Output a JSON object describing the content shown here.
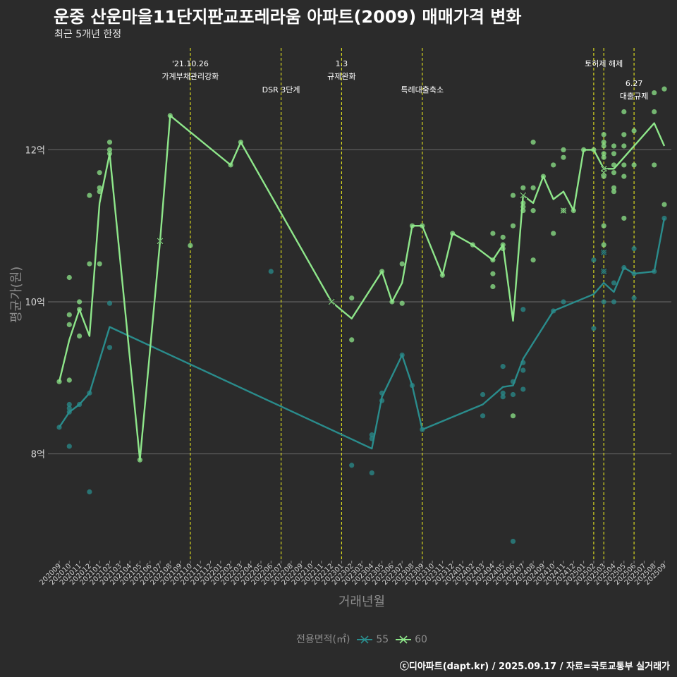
{
  "title": "운중 산운마을11단지판교포레라움 아파트(2009) 매매가격 변화",
  "subtitle": "최근 5개년 한정",
  "footer": "ⓒ디아파트(dapt.kr) / 2025.09.17 / 자료=국토교통부 실거래가",
  "colors": {
    "background": "#2b2b2b",
    "series55": "#2a8c8c",
    "series60": "#8ee68a",
    "event_line": "#d8d81e",
    "grid": "#6b6b6b"
  },
  "chart_data": {
    "type": "line",
    "title": "운중 산운마을11단지판교포레라움 아파트(2009) 매매가격 변화",
    "subtitle": "최근 5개년 한정",
    "xlabel": "거래년월",
    "ylabel": "평균가(원)",
    "ylim": [
      6.6,
      12.9
    ],
    "yticks": [
      {
        "value": 8,
        "label": "8억"
      },
      {
        "value": 10,
        "label": "10억"
      },
      {
        "value": 12,
        "label": "12억"
      }
    ],
    "grid": true,
    "legend_title": "전용면적(㎡)",
    "legend_position": "bottom",
    "categories": [
      "202009",
      "202010",
      "202011",
      "202012",
      "202101",
      "202102",
      "202103",
      "202104",
      "202105",
      "202106",
      "202107",
      "202108",
      "202109",
      "202110",
      "202111",
      "202112",
      "202201",
      "202202",
      "202203",
      "202204",
      "202205",
      "202206",
      "202207",
      "202208",
      "202209",
      "202210",
      "202211",
      "202212",
      "202301",
      "202302",
      "202303",
      "202304",
      "202305",
      "202306",
      "202307",
      "202308",
      "202309",
      "202310",
      "202311",
      "202312",
      "202401",
      "202402",
      "202403",
      "202404",
      "202405",
      "202406",
      "202407",
      "202408",
      "202409",
      "202410",
      "202411",
      "202412",
      "202501",
      "202502",
      "202503",
      "202504",
      "202505",
      "202506",
      "202507",
      "202508",
      "202509"
    ],
    "series": [
      {
        "name": "55",
        "color": "#2a8c8c",
        "line": [
          [
            "202009",
            8.35
          ],
          [
            "202010",
            8.55
          ],
          [
            "202011",
            8.65
          ],
          [
            "202012",
            8.8
          ],
          [
            "202102",
            9.67
          ],
          [
            "202304",
            8.07
          ],
          [
            "202305",
            8.75
          ],
          [
            "202307",
            9.3
          ],
          [
            "202308",
            8.9
          ],
          [
            "202309",
            8.32
          ],
          [
            "202403",
            8.65
          ],
          [
            "202405",
            8.88
          ],
          [
            "202406",
            8.9
          ],
          [
            "202407",
            9.25
          ],
          [
            "202410",
            9.88
          ],
          [
            "202502",
            10.1
          ],
          [
            "202503",
            10.25
          ],
          [
            "202504",
            10.13
          ],
          [
            "202505",
            10.45
          ],
          [
            "202506",
            10.37
          ],
          [
            "202508",
            10.4
          ],
          [
            "202509",
            11.1
          ]
        ],
        "points": [
          [
            "202009",
            8.35
          ],
          [
            "202010",
            8.1
          ],
          [
            "202010",
            8.55
          ],
          [
            "202010",
            8.6
          ],
          [
            "202010",
            8.65
          ],
          [
            "202011",
            8.65
          ],
          [
            "202012",
            7.5
          ],
          [
            "202012",
            8.8
          ],
          [
            "202102",
            9.98
          ],
          [
            "202102",
            9.4
          ],
          [
            "202206",
            10.4
          ],
          [
            "202302",
            7.85
          ],
          [
            "202304",
            8.2
          ],
          [
            "202304",
            8.25
          ],
          [
            "202304",
            7.75
          ],
          [
            "202305",
            8.8
          ],
          [
            "202305",
            8.7
          ],
          [
            "202307",
            9.3
          ],
          [
            "202308",
            8.9
          ],
          [
            "202309",
            8.32
          ],
          [
            "202403",
            8.5
          ],
          [
            "202403",
            8.78
          ],
          [
            "202405",
            9.15
          ],
          [
            "202405",
            8.8
          ],
          [
            "202405",
            8.75
          ],
          [
            "202406",
            8.95
          ],
          [
            "202406",
            8.78
          ],
          [
            "202406",
            6.85
          ],
          [
            "202407",
            9.9
          ],
          [
            "202407",
            9.2
          ],
          [
            "202407",
            9.1
          ],
          [
            "202407",
            8.85
          ],
          [
            "202410",
            9.88
          ],
          [
            "202411",
            10.0
          ],
          [
            "202502",
            9.65
          ],
          [
            "202502",
            10.55
          ],
          [
            "202503",
            10.0
          ],
          [
            "202503",
            10.4
          ],
          [
            "202503",
            10.65
          ],
          [
            "202504",
            10.0
          ],
          [
            "202504",
            10.25
          ],
          [
            "202505",
            10.45
          ],
          [
            "202506",
            10.05
          ],
          [
            "202506",
            10.37
          ],
          [
            "202506",
            10.7
          ],
          [
            "202508",
            10.4
          ],
          [
            "202509",
            11.1
          ]
        ],
        "crosses": [
          [
            "202503",
            10.65
          ],
          [
            "202503",
            10.4
          ]
        ]
      },
      {
        "name": "60",
        "color": "#8ee68a",
        "line": [
          [
            "202009",
            8.95
          ],
          [
            "202010",
            9.5
          ],
          [
            "202011",
            9.9
          ],
          [
            "202012",
            9.55
          ],
          [
            "202101",
            11.3
          ],
          [
            "202102",
            11.95
          ],
          [
            "202105",
            7.92
          ],
          [
            "202107",
            10.8
          ],
          [
            "202108",
            12.45
          ],
          [
            "202202",
            11.8
          ],
          [
            "202203",
            12.1
          ],
          [
            "202212",
            10.0
          ],
          [
            "202302",
            9.78
          ],
          [
            "202305",
            10.4
          ],
          [
            "202306",
            10.0
          ],
          [
            "202307",
            10.25
          ],
          [
            "202308",
            11.0
          ],
          [
            "202309",
            11.0
          ],
          [
            "202311",
            10.35
          ],
          [
            "202312",
            10.9
          ],
          [
            "202402",
            10.75
          ],
          [
            "202404",
            10.55
          ],
          [
            "202405",
            10.75
          ],
          [
            "202406",
            9.75
          ],
          [
            "202407",
            11.4
          ],
          [
            "202408",
            11.3
          ],
          [
            "202409",
            11.65
          ],
          [
            "202410",
            11.35
          ],
          [
            "202411",
            11.45
          ],
          [
            "202412",
            11.2
          ],
          [
            "202501",
            12.0
          ],
          [
            "202502",
            12.0
          ],
          [
            "202503",
            11.75
          ],
          [
            "202504",
            11.75
          ],
          [
            "202506",
            12.05
          ],
          [
            "202508",
            12.35
          ],
          [
            "202509",
            12.05
          ]
        ],
        "points": [
          [
            "202009",
            8.95
          ],
          [
            "202010",
            10.32
          ],
          [
            "202010",
            9.83
          ],
          [
            "202010",
            9.7
          ],
          [
            "202010",
            8.97
          ],
          [
            "202011",
            10.0
          ],
          [
            "202011",
            9.9
          ],
          [
            "202011",
            9.55
          ],
          [
            "202012",
            11.4
          ],
          [
            "202012",
            10.5
          ],
          [
            "202101",
            11.7
          ],
          [
            "202101",
            11.5
          ],
          [
            "202101",
            11.45
          ],
          [
            "202101",
            10.5
          ],
          [
            "202102",
            12.1
          ],
          [
            "202102",
            12.0
          ],
          [
            "202102",
            11.95
          ],
          [
            "202105",
            7.92
          ],
          [
            "202108",
            12.45
          ],
          [
            "202110",
            10.74
          ],
          [
            "202202",
            11.8
          ],
          [
            "202203",
            12.1
          ],
          [
            "202302",
            10.05
          ],
          [
            "202302",
            9.5
          ],
          [
            "202305",
            10.4
          ],
          [
            "202306",
            10.0
          ],
          [
            "202307",
            10.5
          ],
          [
            "202307",
            9.98
          ],
          [
            "202308",
            11.0
          ],
          [
            "202309",
            11.0
          ],
          [
            "202311",
            10.35
          ],
          [
            "202312",
            10.9
          ],
          [
            "202402",
            10.75
          ],
          [
            "202404",
            10.9
          ],
          [
            "202404",
            10.55
          ],
          [
            "202404",
            10.37
          ],
          [
            "202404",
            10.2
          ],
          [
            "202405",
            10.85
          ],
          [
            "202405",
            10.75
          ],
          [
            "202405",
            10.7
          ],
          [
            "202406",
            11.0
          ],
          [
            "202406",
            11.4
          ],
          [
            "202406",
            8.5
          ],
          [
            "202407",
            11.5
          ],
          [
            "202407",
            11.3
          ],
          [
            "202407",
            11.25
          ],
          [
            "202407",
            11.2
          ],
          [
            "202408",
            12.1
          ],
          [
            "202408",
            11.5
          ],
          [
            "202408",
            11.2
          ],
          [
            "202408",
            10.55
          ],
          [
            "202409",
            11.65
          ],
          [
            "202410",
            11.8
          ],
          [
            "202410",
            10.9
          ],
          [
            "202411",
            12.0
          ],
          [
            "202411",
            11.9
          ],
          [
            "202411",
            11.2
          ],
          [
            "202412",
            11.2
          ],
          [
            "202501",
            12.0
          ],
          [
            "202502",
            12.0
          ],
          [
            "202503",
            12.2
          ],
          [
            "202503",
            12.1
          ],
          [
            "202503",
            12.05
          ],
          [
            "202503",
            11.95
          ],
          [
            "202503",
            11.9
          ],
          [
            "202503",
            11.65
          ],
          [
            "202503",
            11.0
          ],
          [
            "202503",
            10.75
          ],
          [
            "202504",
            12.05
          ],
          [
            "202504",
            11.95
          ],
          [
            "202504",
            11.8
          ],
          [
            "202504",
            11.7
          ],
          [
            "202504",
            11.5
          ],
          [
            "202504",
            11.45
          ],
          [
            "202505",
            12.5
          ],
          [
            "202505",
            12.2
          ],
          [
            "202505",
            12.05
          ],
          [
            "202505",
            11.8
          ],
          [
            "202505",
            11.65
          ],
          [
            "202505",
            11.1
          ],
          [
            "202506",
            12.25
          ],
          [
            "202506",
            11.8
          ],
          [
            "202508",
            12.75
          ],
          [
            "202508",
            12.5
          ],
          [
            "202508",
            11.8
          ],
          [
            "202509",
            12.8
          ],
          [
            "202509",
            11.28
          ]
        ],
        "crosses": [
          [
            "202107",
            10.8
          ],
          [
            "202212",
            10.0
          ],
          [
            "202407",
            11.4
          ],
          [
            "202411",
            11.2
          ],
          [
            "202503",
            11.75
          ],
          [
            "202503",
            11.7
          ]
        ]
      }
    ],
    "events": [
      {
        "x": "202110",
        "label": "'21.10.26\n가계부채관리강화",
        "row": 1
      },
      {
        "x": "202207",
        "label": "DSR 3단계",
        "row": 3
      },
      {
        "x": "202301",
        "label": "1.3\n규제완화",
        "row": 1
      },
      {
        "x": "202309",
        "label": "특례대출축소",
        "row": 3
      },
      {
        "x": "202502",
        "label": "",
        "row": 0
      },
      {
        "x": "202503",
        "label": "토허제 해제",
        "row": 1
      },
      {
        "x": "202506",
        "label": "6.27\n대출규제",
        "row": 2
      }
    ]
  }
}
